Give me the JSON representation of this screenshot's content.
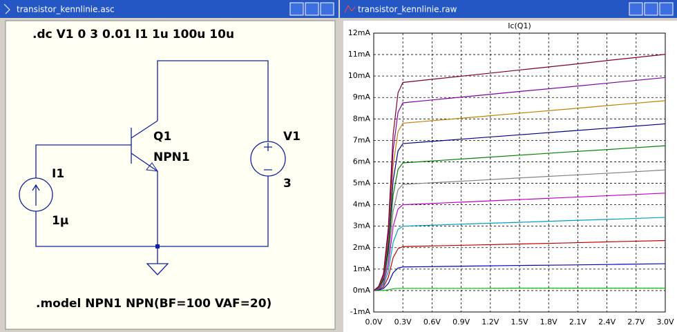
{
  "windows": [
    {
      "title": "transistor_kennlinie.asc"
    },
    {
      "title": "transistor_kennlinie.raw"
    }
  ],
  "schematic": {
    "directive": ".dc V1 0 3 0.01 I1 1u 100u 10u",
    "model": ".model NPN1 NPN(BF=100 VAF=20)",
    "q_name": "Q1",
    "q_model": "NPN1",
    "v_name": "V1",
    "v_value": "3",
    "i_name": "I1",
    "i_value": "1µ"
  },
  "chart_data": {
    "type": "line",
    "title": "Ic(Q1)",
    "title_color": "#00b000",
    "grid": true,
    "x": [
      0,
      0.05,
      0.1,
      0.15,
      0.2,
      0.25,
      0.3,
      0.5,
      1.0,
      1.5,
      2.0,
      2.5,
      3.0
    ],
    "xlim": [
      0,
      3
    ],
    "ylim": [
      -1,
      12
    ],
    "xticks": [
      {
        "value": 0,
        "label": "0.0V"
      },
      {
        "value": 0.3,
        "label": "0.3V"
      },
      {
        "value": 0.6,
        "label": "0.6V"
      },
      {
        "value": 0.9,
        "label": "0.9V"
      },
      {
        "value": 1.2,
        "label": "1.2V"
      },
      {
        "value": 1.5,
        "label": "1.5V"
      },
      {
        "value": 1.8,
        "label": "1.8V"
      },
      {
        "value": 2.1,
        "label": "2.1V"
      },
      {
        "value": 2.4,
        "label": "2.4V"
      },
      {
        "value": 2.7,
        "label": "2.7V"
      },
      {
        "value": 3.0,
        "label": "3.0V"
      }
    ],
    "yticks": [
      {
        "value": -1,
        "label": "-1mA"
      },
      {
        "value": 0,
        "label": "0mA"
      },
      {
        "value": 1,
        "label": "1mA"
      },
      {
        "value": 2,
        "label": "2mA"
      },
      {
        "value": 3,
        "label": "3mA"
      },
      {
        "value": 4,
        "label": "4mA"
      },
      {
        "value": 5,
        "label": "5mA"
      },
      {
        "value": 6,
        "label": "6mA"
      },
      {
        "value": 7,
        "label": "7mA"
      },
      {
        "value": 8,
        "label": "8mA"
      },
      {
        "value": 9,
        "label": "9mA"
      },
      {
        "value": 10,
        "label": "10mA"
      },
      {
        "value": 11,
        "label": "11mA"
      },
      {
        "value": 12,
        "label": "12mA"
      }
    ],
    "series": [
      {
        "color": "#00c000",
        "values": [
          0,
          0,
          0.01,
          0.03,
          0.08,
          0.1,
          0.1,
          0.1,
          0.1,
          0.11,
          0.11,
          0.11,
          0.11
        ]
      },
      {
        "color": "#0000c0",
        "values": [
          0,
          0.02,
          0.09,
          0.33,
          0.83,
          1.05,
          1.1,
          1.11,
          1.14,
          1.17,
          1.19,
          1.22,
          1.25
        ]
      },
      {
        "color": "#c00000",
        "values": [
          0,
          0.04,
          0.16,
          0.62,
          1.54,
          1.95,
          2.05,
          2.07,
          2.12,
          2.17,
          2.22,
          2.28,
          2.33
        ]
      },
      {
        "color": "#00a0c0",
        "values": [
          0,
          0.06,
          0.24,
          0.9,
          2.25,
          2.85,
          3.0,
          3.03,
          3.11,
          3.18,
          3.26,
          3.33,
          3.41
        ]
      },
      {
        "color": "#c000c0",
        "values": [
          0,
          0.08,
          0.32,
          1.2,
          3.0,
          3.8,
          4.0,
          4.04,
          4.14,
          4.24,
          4.34,
          4.44,
          4.54
        ]
      },
      {
        "color": "#808080",
        "values": [
          0,
          0.1,
          0.4,
          1.49,
          3.71,
          4.7,
          4.95,
          5.0,
          5.12,
          5.25,
          5.37,
          5.49,
          5.62
        ]
      },
      {
        "color": "#008000",
        "values": [
          0,
          0.12,
          0.48,
          1.79,
          4.46,
          5.65,
          5.95,
          6.01,
          6.16,
          6.31,
          6.46,
          6.6,
          6.75
        ]
      },
      {
        "color": "#000080",
        "values": [
          0,
          0.14,
          0.55,
          2.06,
          5.14,
          6.51,
          6.85,
          6.92,
          7.09,
          7.26,
          7.43,
          7.6,
          7.77
        ]
      },
      {
        "color": "#c08000",
        "values": [
          0,
          0.16,
          0.62,
          2.34,
          5.85,
          7.41,
          7.8,
          7.88,
          8.07,
          8.27,
          8.46,
          8.66,
          8.85
        ]
      },
      {
        "color": "#8000a0",
        "values": [
          0,
          0.18,
          0.7,
          2.63,
          6.56,
          8.31,
          8.75,
          8.84,
          9.06,
          9.28,
          9.49,
          9.71,
          9.93
        ]
      },
      {
        "color": "#800020",
        "values": [
          0,
          0.19,
          0.78,
          2.91,
          7.28,
          9.22,
          9.7,
          9.8,
          10.04,
          10.28,
          10.52,
          10.77,
          11.01
        ]
      }
    ]
  }
}
